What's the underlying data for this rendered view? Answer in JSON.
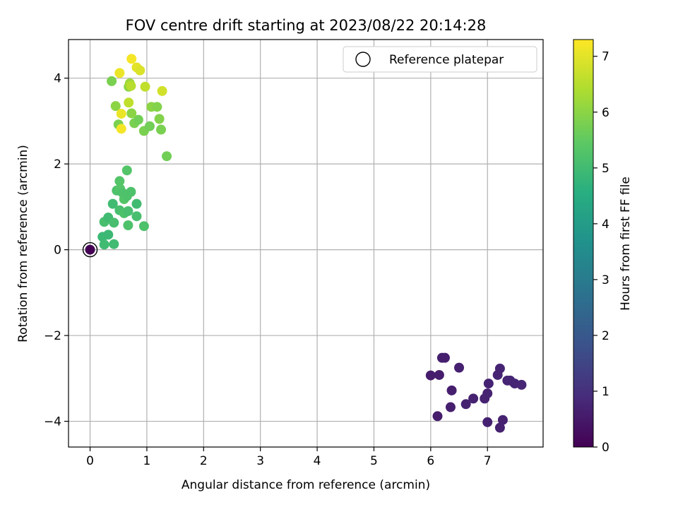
{
  "chart_data": {
    "type": "scatter",
    "title": "FOV centre drift starting at 2023/08/22 20:14:28",
    "xlabel": "Angular distance from reference (arcmin)",
    "ylabel": "Rotation from reference (arcmin)",
    "xlim": [
      -0.38,
      7.98
    ],
    "ylim": [
      -4.6,
      4.9
    ],
    "xticks": [
      0,
      1,
      2,
      3,
      4,
      5,
      6,
      7
    ],
    "yticks": [
      -4,
      -2,
      0,
      2,
      4
    ],
    "xtick_labels": [
      "0",
      "1",
      "2",
      "3",
      "4",
      "5",
      "6",
      "7"
    ],
    "ytick_labels": [
      "−4",
      "−2",
      "0",
      "2",
      "4"
    ],
    "grid": true,
    "legend": {
      "position": "top-right",
      "label": "Reference platepar"
    },
    "reference_point": {
      "x": 0,
      "y": 0
    },
    "colorbar": {
      "label": "Hours from first FF file",
      "range": [
        0,
        7.3
      ],
      "ticks": [
        0,
        1,
        2,
        3,
        4,
        5,
        6,
        7
      ],
      "tick_labels": [
        "0",
        "1",
        "2",
        "3",
        "4",
        "5",
        "6",
        "7"
      ],
      "colormap": "viridis"
    },
    "points": [
      {
        "x": 0.0,
        "y": 0.0,
        "h": 0.0
      },
      {
        "x": 6.0,
        "y": -2.93,
        "h": 0.55
      },
      {
        "x": 6.15,
        "y": -2.92,
        "h": 0.58
      },
      {
        "x": 6.2,
        "y": -2.52,
        "h": 0.62
      },
      {
        "x": 6.25,
        "y": -2.52,
        "h": 0.6
      },
      {
        "x": 6.5,
        "y": -2.75,
        "h": 0.65
      },
      {
        "x": 6.37,
        "y": -3.28,
        "h": 0.6
      },
      {
        "x": 6.12,
        "y": -3.88,
        "h": 0.55
      },
      {
        "x": 6.35,
        "y": -3.67,
        "h": 0.62
      },
      {
        "x": 6.62,
        "y": -3.6,
        "h": 0.65
      },
      {
        "x": 6.75,
        "y": -3.47,
        "h": 0.68
      },
      {
        "x": 6.95,
        "y": -3.47,
        "h": 0.68
      },
      {
        "x": 7.0,
        "y": -3.35,
        "h": 0.7
      },
      {
        "x": 7.02,
        "y": -3.12,
        "h": 0.7
      },
      {
        "x": 7.18,
        "y": -2.92,
        "h": 0.72
      },
      {
        "x": 7.22,
        "y": -2.77,
        "h": 0.72
      },
      {
        "x": 7.35,
        "y": -3.05,
        "h": 0.75
      },
      {
        "x": 7.4,
        "y": -3.05,
        "h": 0.75
      },
      {
        "x": 7.48,
        "y": -3.12,
        "h": 0.75
      },
      {
        "x": 7.6,
        "y": -3.15,
        "h": 0.78
      },
      {
        "x": 7.0,
        "y": -4.02,
        "h": 0.65
      },
      {
        "x": 7.27,
        "y": -3.97,
        "h": 0.68
      },
      {
        "x": 7.22,
        "y": -4.15,
        "h": 0.68
      },
      {
        "x": 0.22,
        "y": 0.3,
        "h": 4.9
      },
      {
        "x": 0.25,
        "y": 0.12,
        "h": 5.0
      },
      {
        "x": 0.32,
        "y": 0.35,
        "h": 4.9
      },
      {
        "x": 0.42,
        "y": 0.13,
        "h": 5.0
      },
      {
        "x": 0.25,
        "y": 0.65,
        "h": 5.1
      },
      {
        "x": 0.32,
        "y": 0.75,
        "h": 5.0
      },
      {
        "x": 0.42,
        "y": 0.63,
        "h": 5.1
      },
      {
        "x": 0.4,
        "y": 1.07,
        "h": 5.0
      },
      {
        "x": 0.52,
        "y": 0.92,
        "h": 5.1
      },
      {
        "x": 0.6,
        "y": 0.85,
        "h": 5.2
      },
      {
        "x": 0.67,
        "y": 0.9,
        "h": 5.1
      },
      {
        "x": 0.67,
        "y": 0.57,
        "h": 5.2
      },
      {
        "x": 0.82,
        "y": 0.78,
        "h": 5.1
      },
      {
        "x": 0.95,
        "y": 0.55,
        "h": 5.2
      },
      {
        "x": 0.82,
        "y": 1.07,
        "h": 5.0
      },
      {
        "x": 0.47,
        "y": 1.38,
        "h": 5.2
      },
      {
        "x": 0.53,
        "y": 1.42,
        "h": 5.3
      },
      {
        "x": 0.57,
        "y": 1.33,
        "h": 5.2
      },
      {
        "x": 0.6,
        "y": 1.18,
        "h": 5.3
      },
      {
        "x": 0.65,
        "y": 1.25,
        "h": 5.2
      },
      {
        "x": 0.72,
        "y": 1.35,
        "h": 5.2
      },
      {
        "x": 0.52,
        "y": 1.6,
        "h": 5.3
      },
      {
        "x": 0.65,
        "y": 1.85,
        "h": 5.3
      },
      {
        "x": 1.35,
        "y": 2.18,
        "h": 5.7
      },
      {
        "x": 0.5,
        "y": 2.92,
        "h": 5.8
      },
      {
        "x": 0.78,
        "y": 2.95,
        "h": 5.8
      },
      {
        "x": 0.85,
        "y": 3.03,
        "h": 5.7
      },
      {
        "x": 0.95,
        "y": 2.77,
        "h": 5.8
      },
      {
        "x": 1.05,
        "y": 2.88,
        "h": 5.7
      },
      {
        "x": 1.25,
        "y": 2.8,
        "h": 5.8
      },
      {
        "x": 1.22,
        "y": 3.05,
        "h": 5.9
      },
      {
        "x": 1.08,
        "y": 3.33,
        "h": 6.0
      },
      {
        "x": 1.18,
        "y": 3.33,
        "h": 5.9
      },
      {
        "x": 0.73,
        "y": 3.18,
        "h": 6.0
      },
      {
        "x": 0.45,
        "y": 3.35,
        "h": 6.0
      },
      {
        "x": 0.68,
        "y": 3.8,
        "h": 6.0
      },
      {
        "x": 0.7,
        "y": 3.88,
        "h": 6.2
      },
      {
        "x": 0.72,
        "y": 3.82,
        "h": 6.5
      },
      {
        "x": 0.38,
        "y": 3.93,
        "h": 5.8
      },
      {
        "x": 0.97,
        "y": 3.8,
        "h": 6.6
      },
      {
        "x": 1.27,
        "y": 3.7,
        "h": 6.8
      },
      {
        "x": 0.55,
        "y": 3.17,
        "h": 7.1
      },
      {
        "x": 0.68,
        "y": 3.43,
        "h": 6.6
      },
      {
        "x": 0.55,
        "y": 2.82,
        "h": 7.2
      },
      {
        "x": 0.52,
        "y": 4.12,
        "h": 7.1
      },
      {
        "x": 0.82,
        "y": 4.25,
        "h": 7.0
      },
      {
        "x": 0.88,
        "y": 4.18,
        "h": 6.9
      },
      {
        "x": 0.73,
        "y": 4.45,
        "h": 7.2
      }
    ]
  }
}
